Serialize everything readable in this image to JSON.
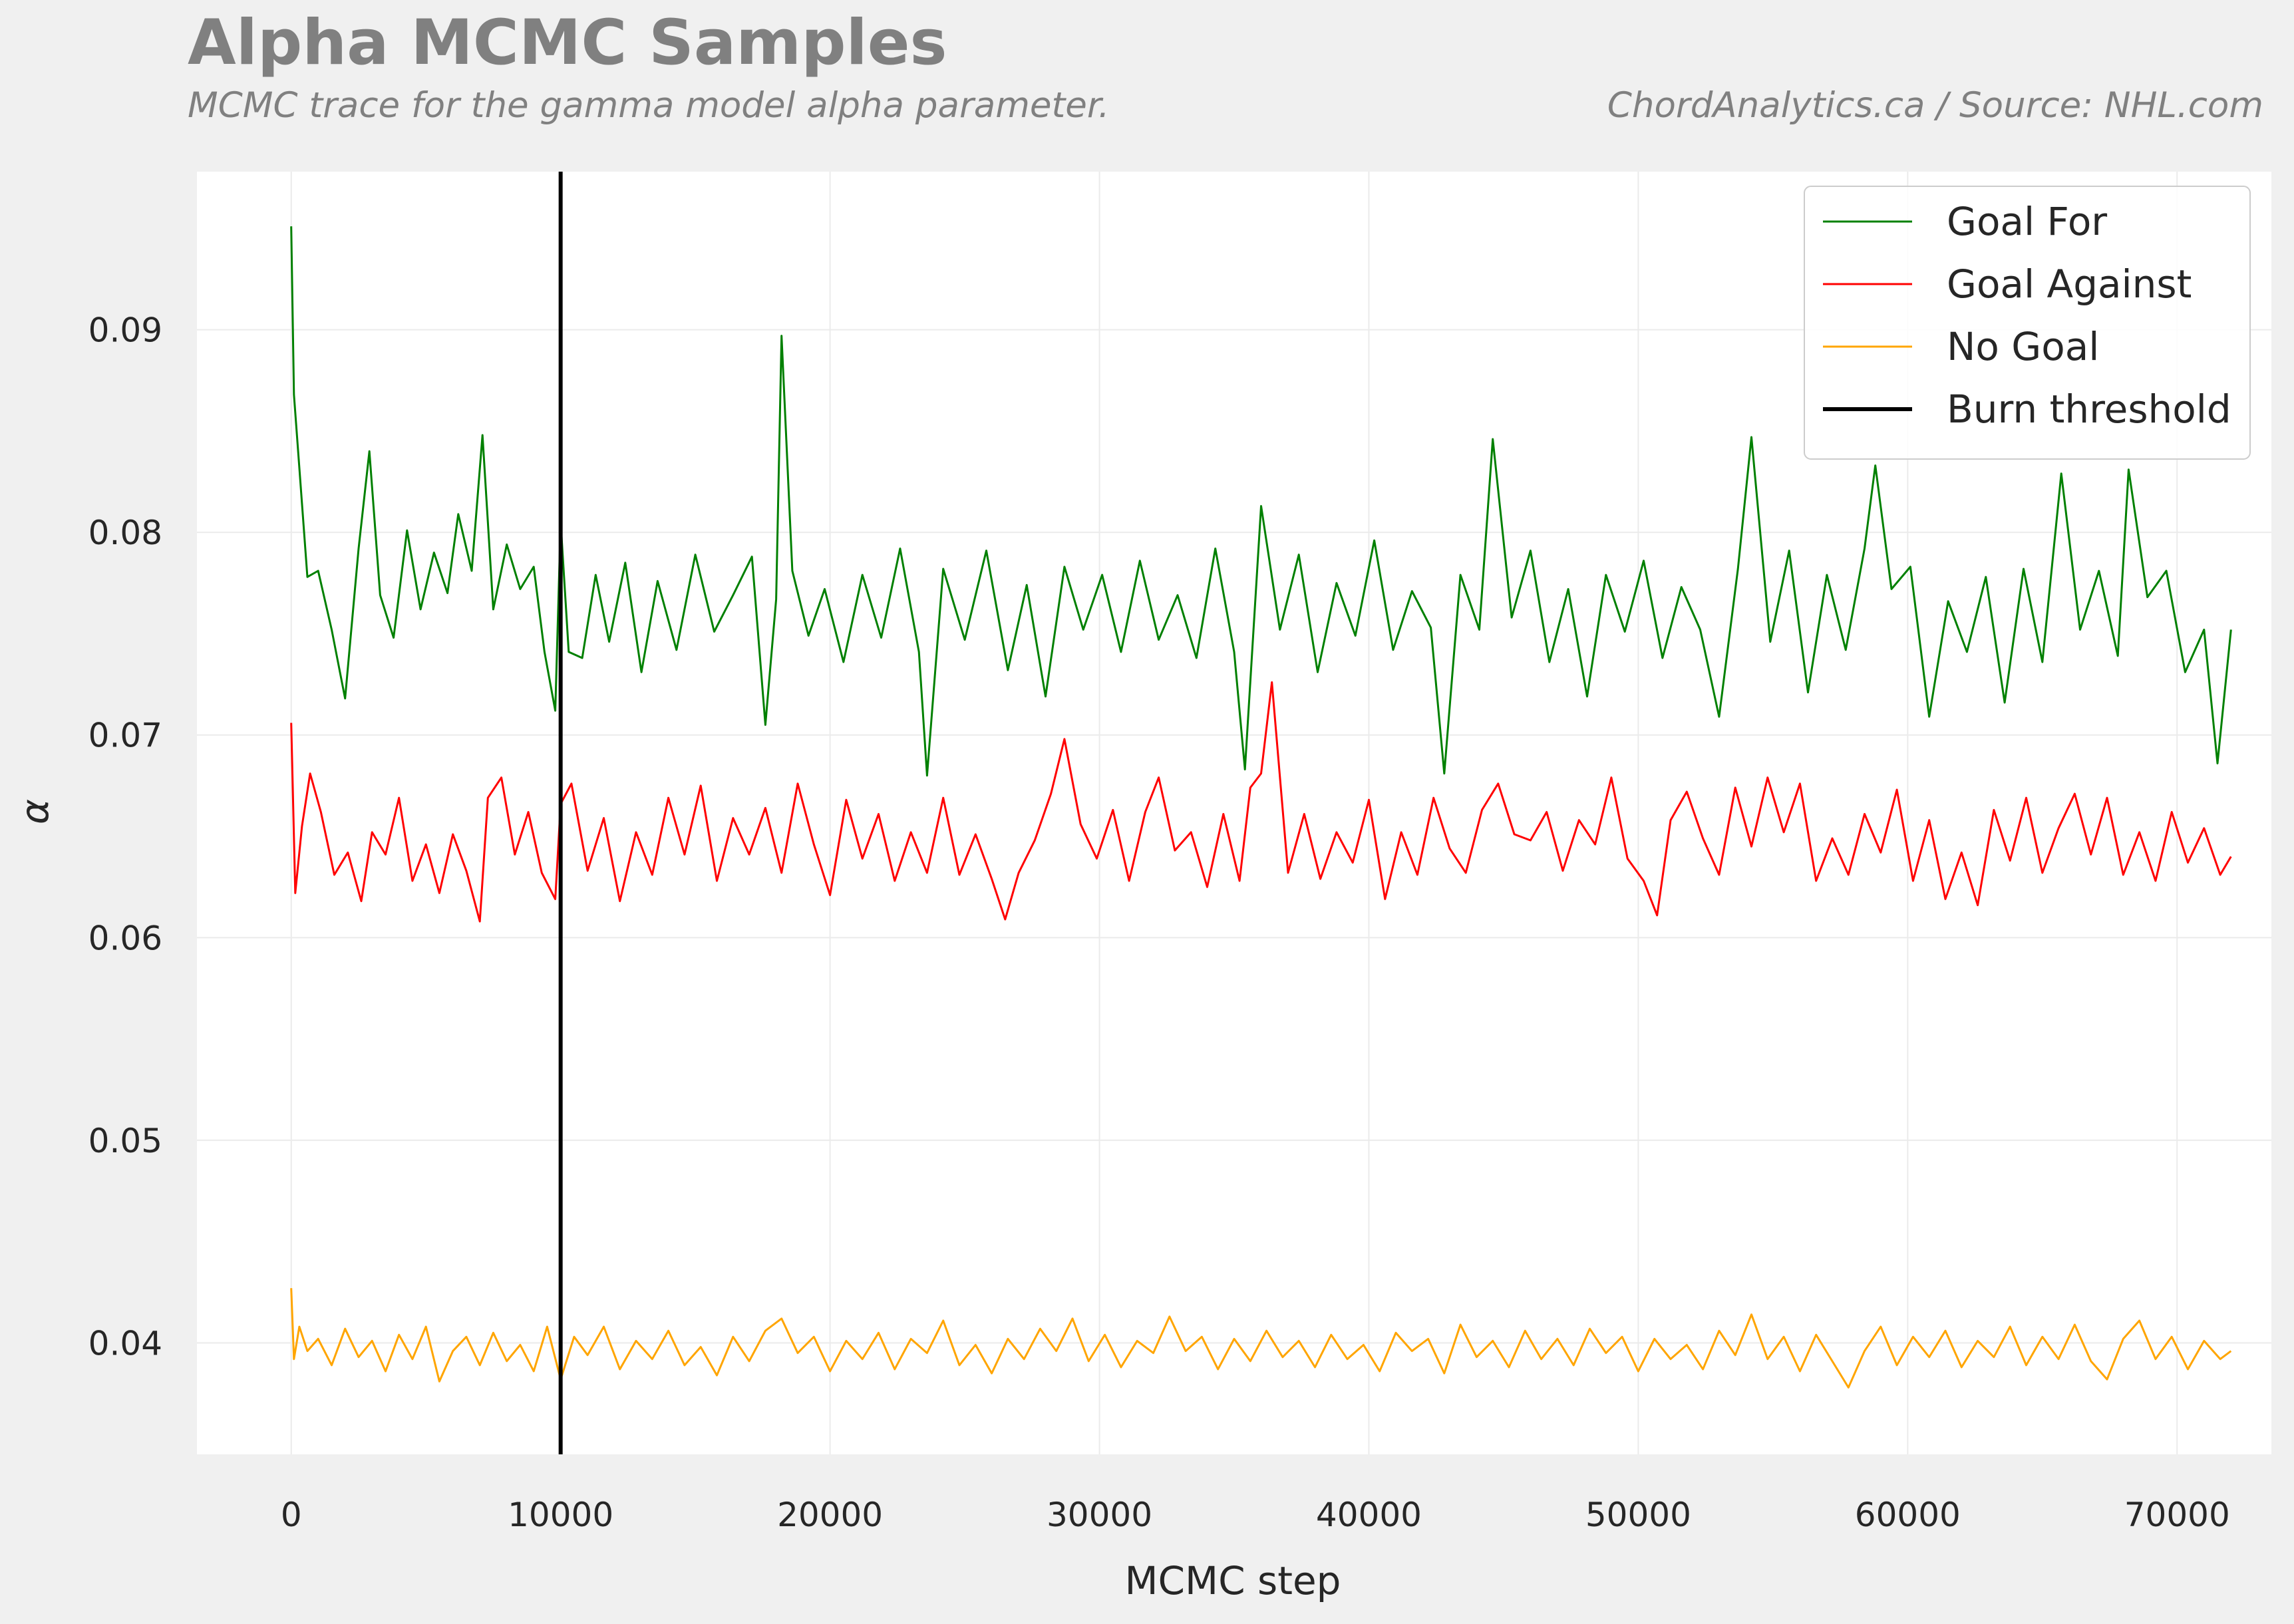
{
  "header": {
    "title": "Alpha MCMC Samples",
    "subtitle": "MCMC trace for the gamma model alpha parameter.",
    "credit": "ChordAnalytics.ca  /  Source: NHL.com"
  },
  "chart_data": {
    "type": "line",
    "title": "Alpha MCMC Samples",
    "subtitle": "MCMC trace for the gamma model alpha parameter.",
    "xlabel": "MCMC step",
    "ylabel": "α",
    "xlim": [
      -3500,
      73500
    ],
    "ylim": [
      0.0345,
      0.0978
    ],
    "xticks": [
      0,
      10000,
      20000,
      30000,
      40000,
      50000,
      60000,
      70000
    ],
    "xtick_labels": [
      "0",
      "10000",
      "20000",
      "30000",
      "40000",
      "50000",
      "60000",
      "70000"
    ],
    "yticks": [
      0.04,
      0.05,
      0.06,
      0.07,
      0.08,
      0.09
    ],
    "ytick_labels": [
      "0.04",
      "0.05",
      "0.06",
      "0.07",
      "0.08",
      "0.09"
    ],
    "grid": true,
    "legend_position": "top-right",
    "vlines": [
      {
        "name": "Burn threshold",
        "x": 10000,
        "color": "#000000"
      }
    ],
    "series": [
      {
        "name": "Goal For",
        "color": "#008000",
        "x": [
          0,
          100,
          300,
          600,
          1000,
          1500,
          2000,
          2500,
          2900,
          3300,
          3800,
          4300,
          4800,
          5300,
          5800,
          6200,
          6700,
          7100,
          7500,
          8000,
          8500,
          9000,
          9400,
          9800,
          10000,
          10300,
          10800,
          11300,
          11800,
          12400,
          13000,
          13600,
          14300,
          15000,
          15700,
          16400,
          17100,
          17600,
          18000,
          18200,
          18600,
          19200,
          19800,
          20500,
          21200,
          21900,
          22600,
          23300,
          23600,
          24200,
          25000,
          25800,
          26600,
          27300,
          28000,
          28700,
          29400,
          30100,
          30800,
          31500,
          32200,
          32900,
          33600,
          34300,
          35000,
          35400,
          36000,
          36700,
          37400,
          38100,
          38800,
          39500,
          40200,
          40900,
          41600,
          42300,
          42800,
          43400,
          44100,
          44600,
          45300,
          46000,
          46700,
          47400,
          48100,
          48800,
          49500,
          50200,
          50900,
          51600,
          52300,
          53000,
          53700,
          54200,
          54900,
          55600,
          56300,
          57000,
          57700,
          58400,
          58800,
          59400,
          60100,
          60800,
          61500,
          62200,
          62900,
          63600,
          64300,
          65000,
          65700,
          66400,
          67100,
          67800,
          68200,
          68900,
          69600,
          70300,
          71000,
          71500,
          72000
        ],
        "values": [
          0.0951,
          0.0868,
          0.0832,
          0.0778,
          0.0781,
          0.0752,
          0.0718,
          0.0792,
          0.084,
          0.0769,
          0.0748,
          0.0801,
          0.0762,
          0.079,
          0.077,
          0.0809,
          0.0781,
          0.0848,
          0.0762,
          0.0794,
          0.0772,
          0.0783,
          0.0741,
          0.0712,
          0.0805,
          0.0741,
          0.0738,
          0.0779,
          0.0746,
          0.0785,
          0.0731,
          0.0776,
          0.0742,
          0.0789,
          0.0751,
          0.0769,
          0.0788,
          0.0705,
          0.0767,
          0.0897,
          0.0781,
          0.0749,
          0.0772,
          0.0736,
          0.0779,
          0.0748,
          0.0792,
          0.0741,
          0.068,
          0.0782,
          0.0747,
          0.0791,
          0.0732,
          0.0774,
          0.0719,
          0.0783,
          0.0752,
          0.0779,
          0.0741,
          0.0786,
          0.0747,
          0.0769,
          0.0738,
          0.0792,
          0.0741,
          0.0683,
          0.0813,
          0.0752,
          0.0789,
          0.0731,
          0.0775,
          0.0749,
          0.0796,
          0.0742,
          0.0771,
          0.0753,
          0.0681,
          0.0779,
          0.0752,
          0.0846,
          0.0758,
          0.0791,
          0.0736,
          0.0772,
          0.0719,
          0.0779,
          0.0751,
          0.0786,
          0.0738,
          0.0773,
          0.0752,
          0.0709,
          0.0782,
          0.0847,
          0.0746,
          0.0791,
          0.0721,
          0.0779,
          0.0742,
          0.0792,
          0.0833,
          0.0772,
          0.0783,
          0.0709,
          0.0766,
          0.0741,
          0.0778,
          0.0716,
          0.0782,
          0.0736,
          0.0829,
          0.0752,
          0.0781,
          0.0739,
          0.0831,
          0.0768,
          0.0781,
          0.0731,
          0.0752,
          0.0686,
          0.0752
        ]
      },
      {
        "name": "Goal Against",
        "color": "#ff0000",
        "x": [
          0,
          150,
          400,
          700,
          1100,
          1600,
          2100,
          2600,
          3000,
          3500,
          4000,
          4500,
          5000,
          5500,
          6000,
          6500,
          7000,
          7300,
          7800,
          8300,
          8800,
          9300,
          9800,
          10000,
          10400,
          11000,
          11600,
          12200,
          12800,
          13400,
          14000,
          14600,
          15200,
          15800,
          16400,
          17000,
          17600,
          18200,
          18800,
          19400,
          20000,
          20600,
          21200,
          21800,
          22400,
          23000,
          23600,
          24200,
          24800,
          25400,
          26000,
          26500,
          27000,
          27600,
          28200,
          28700,
          29300,
          29900,
          30500,
          31100,
          31700,
          32200,
          32800,
          33400,
          34000,
          34600,
          35200,
          35600,
          36000,
          36400,
          37000,
          37600,
          38200,
          38800,
          39400,
          40000,
          40600,
          41200,
          41800,
          42400,
          43000,
          43600,
          44200,
          44800,
          45400,
          46000,
          46600,
          47200,
          47800,
          48400,
          49000,
          49600,
          50200,
          50700,
          51200,
          51800,
          52400,
          53000,
          53600,
          54200,
          54800,
          55400,
          56000,
          56600,
          57200,
          57800,
          58400,
          59000,
          59600,
          60200,
          60800,
          61400,
          62000,
          62600,
          63200,
          63800,
          64400,
          65000,
          65600,
          66200,
          66800,
          67400,
          68000,
          68600,
          69200,
          69800,
          70400,
          71000,
          71600,
          72000
        ],
        "values": [
          0.0706,
          0.0622,
          0.0655,
          0.0681,
          0.0662,
          0.0631,
          0.0642,
          0.0618,
          0.0652,
          0.0641,
          0.0669,
          0.0628,
          0.0646,
          0.0622,
          0.0651,
          0.0633,
          0.0608,
          0.0669,
          0.0679,
          0.0641,
          0.0662,
          0.0632,
          0.0619,
          0.0666,
          0.0676,
          0.0633,
          0.0659,
          0.0618,
          0.0652,
          0.0631,
          0.0669,
          0.0641,
          0.0675,
          0.0628,
          0.0659,
          0.0641,
          0.0664,
          0.0632,
          0.0676,
          0.0646,
          0.0621,
          0.0668,
          0.0639,
          0.0661,
          0.0628,
          0.0652,
          0.0632,
          0.0669,
          0.0631,
          0.0651,
          0.0629,
          0.0609,
          0.0632,
          0.0648,
          0.0671,
          0.0698,
          0.0656,
          0.0639,
          0.0663,
          0.0628,
          0.0662,
          0.0679,
          0.0643,
          0.0652,
          0.0625,
          0.0661,
          0.0628,
          0.0674,
          0.0681,
          0.0726,
          0.0632,
          0.0661,
          0.0629,
          0.0652,
          0.0637,
          0.0668,
          0.0619,
          0.0652,
          0.0631,
          0.0669,
          0.0644,
          0.0632,
          0.0663,
          0.0676,
          0.0651,
          0.0648,
          0.0662,
          0.0633,
          0.0658,
          0.0646,
          0.0679,
          0.0639,
          0.0628,
          0.0611,
          0.0658,
          0.0672,
          0.0649,
          0.0631,
          0.0674,
          0.0645,
          0.0679,
          0.0652,
          0.0676,
          0.0628,
          0.0649,
          0.0631,
          0.0661,
          0.0642,
          0.0673,
          0.0628,
          0.0658,
          0.0619,
          0.0642,
          0.0616,
          0.0663,
          0.0638,
          0.0669,
          0.0632,
          0.0654,
          0.0671,
          0.0641,
          0.0669,
          0.0631,
          0.0652,
          0.0628,
          0.0662,
          0.0637,
          0.0654,
          0.0631,
          0.064
        ]
      },
      {
        "name": "No Goal",
        "color": "#ffa500",
        "x": [
          0,
          100,
          300,
          600,
          1000,
          1500,
          2000,
          2500,
          3000,
          3500,
          4000,
          4500,
          5000,
          5500,
          6000,
          6500,
          7000,
          7500,
          8000,
          8500,
          9000,
          9500,
          10000,
          10500,
          11000,
          11600,
          12200,
          12800,
          13400,
          14000,
          14600,
          15200,
          15800,
          16400,
          17000,
          17600,
          18200,
          18800,
          19400,
          20000,
          20600,
          21200,
          21800,
          22400,
          23000,
          23600,
          24200,
          24800,
          25400,
          26000,
          26600,
          27200,
          27800,
          28400,
          29000,
          29600,
          30200,
          30800,
          31400,
          32000,
          32600,
          33200,
          33800,
          34400,
          35000,
          35600,
          36200,
          36800,
          37400,
          38000,
          38600,
          39200,
          39800,
          40400,
          41000,
          41600,
          42200,
          42800,
          43400,
          44000,
          44600,
          45200,
          45800,
          46400,
          47000,
          47600,
          48200,
          48800,
          49400,
          50000,
          50600,
          51200,
          51800,
          52400,
          53000,
          53600,
          54200,
          54800,
          55400,
          56000,
          56600,
          57200,
          57800,
          58400,
          59000,
          59600,
          60200,
          60800,
          61400,
          62000,
          62600,
          63200,
          63800,
          64400,
          65000,
          65600,
          66200,
          66800,
          67400,
          68000,
          68600,
          69200,
          69800,
          70400,
          71000,
          71600,
          72000
        ],
        "values": [
          0.0427,
          0.0392,
          0.0408,
          0.0396,
          0.0402,
          0.0389,
          0.0407,
          0.0393,
          0.0401,
          0.0386,
          0.0404,
          0.0392,
          0.0408,
          0.0381,
          0.0396,
          0.0403,
          0.0389,
          0.0405,
          0.0391,
          0.0399,
          0.0386,
          0.0408,
          0.0382,
          0.0403,
          0.0394,
          0.0408,
          0.0387,
          0.0401,
          0.0392,
          0.0406,
          0.0389,
          0.0398,
          0.0384,
          0.0403,
          0.0391,
          0.0406,
          0.0412,
          0.0395,
          0.0403,
          0.0386,
          0.0401,
          0.0392,
          0.0405,
          0.0387,
          0.0402,
          0.0395,
          0.0411,
          0.0389,
          0.0399,
          0.0385,
          0.0402,
          0.0392,
          0.0407,
          0.0396,
          0.0412,
          0.0391,
          0.0404,
          0.0388,
          0.0401,
          0.0395,
          0.0413,
          0.0396,
          0.0403,
          0.0387,
          0.0402,
          0.0391,
          0.0406,
          0.0393,
          0.0401,
          0.0388,
          0.0404,
          0.0392,
          0.0399,
          0.0386,
          0.0405,
          0.0396,
          0.0402,
          0.0385,
          0.0409,
          0.0393,
          0.0401,
          0.0388,
          0.0406,
          0.0392,
          0.0402,
          0.0389,
          0.0407,
          0.0395,
          0.0403,
          0.0386,
          0.0402,
          0.0392,
          0.0399,
          0.0387,
          0.0406,
          0.0394,
          0.0414,
          0.0392,
          0.0403,
          0.0386,
          0.0404,
          0.0391,
          0.0378,
          0.0396,
          0.0408,
          0.0389,
          0.0403,
          0.0393,
          0.0406,
          0.0388,
          0.0401,
          0.0393,
          0.0408,
          0.0389,
          0.0403,
          0.0392,
          0.0409,
          0.0391,
          0.0382,
          0.0402,
          0.0411,
          0.0392,
          0.0403,
          0.0387,
          0.0401,
          0.0392,
          0.0396
        ]
      }
    ]
  }
}
